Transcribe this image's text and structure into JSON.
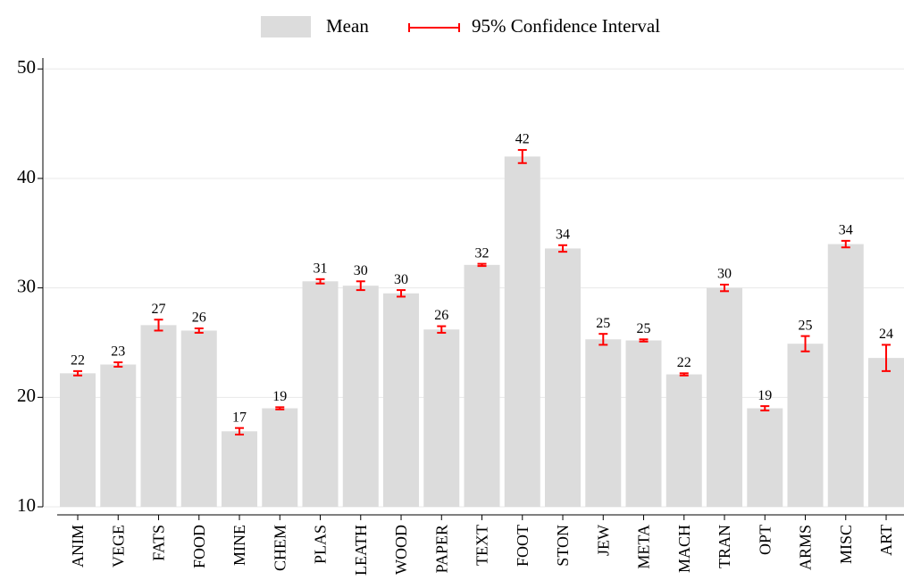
{
  "chart_data": {
    "type": "bar",
    "categories": [
      "ANIM",
      "VEGE",
      "FATS",
      "FOOD",
      "MINE",
      "CHEM",
      "PLAS",
      "LEATH",
      "WOOD",
      "PAPER",
      "TEXT",
      "FOOT",
      "STON",
      "JEW",
      "META",
      "MACH",
      "TRAN",
      "OPT",
      "ARMS",
      "MISC",
      "ART"
    ],
    "series": [
      {
        "name": "Mean",
        "color": "#dcdcdc",
        "values": [
          22.2,
          23.0,
          26.6,
          26.1,
          16.9,
          19.0,
          30.6,
          30.2,
          29.5,
          26.2,
          32.1,
          42.0,
          33.6,
          25.3,
          25.2,
          22.1,
          30.0,
          19.0,
          24.9,
          34.0,
          23.6
        ],
        "value_labels": [
          "22",
          "23",
          "27",
          "26",
          "17",
          "19",
          "31",
          "30",
          "30",
          "26",
          "32",
          "42",
          "34",
          "25",
          "25",
          "22",
          "30",
          "19",
          "25",
          "34",
          "24"
        ],
        "errors": [
          0.2,
          0.2,
          0.5,
          0.2,
          0.3,
          0.1,
          0.2,
          0.4,
          0.3,
          0.3,
          0.1,
          0.6,
          0.3,
          0.5,
          0.1,
          0.1,
          0.3,
          0.2,
          0.7,
          0.3,
          1.2
        ]
      }
    ],
    "error_bar": {
      "name": "95% Confidence Interval",
      "color": "#ff0000"
    },
    "ylim": [
      10,
      51
    ],
    "yticks": [
      10,
      20,
      30,
      40,
      50
    ],
    "grid": true
  }
}
